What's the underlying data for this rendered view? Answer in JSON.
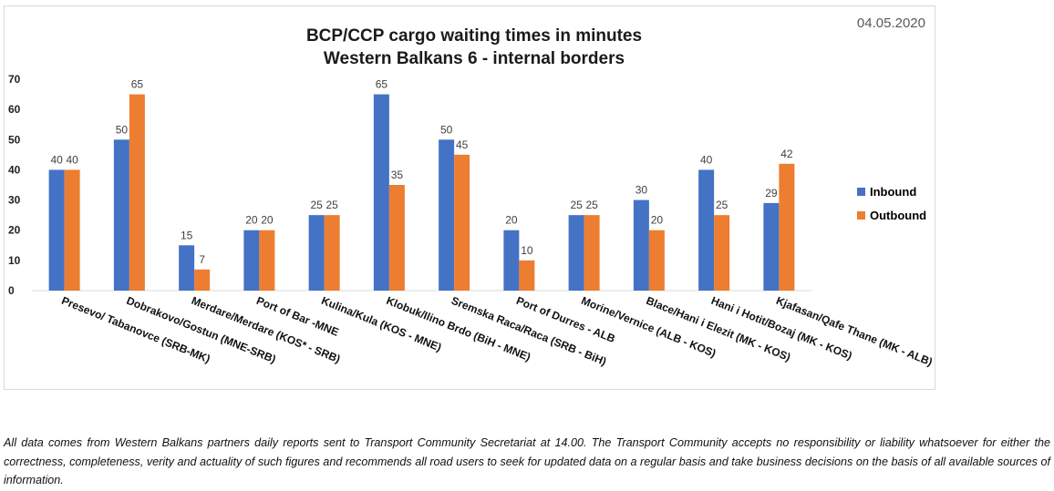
{
  "title_line1": "BCP/CCP cargo waiting times in minutes",
  "title_line2": "Western Balkans 6 - internal borders",
  "date": "04.05.2020",
  "disclaimer": "All data comes from Western Balkans partners daily reports sent to Transport Community Secretariat at 14.00. The Transport Community accepts no responsibility or liability whatsoever for either the correctness, completeness, verity and actuality of such figures and recommends all road users to seek for updated data on a regular basis and take business decisions on the basis of all available sources of information.",
  "chart_data": {
    "type": "bar",
    "title": "BCP/CCP cargo waiting times in minutes Western Balkans 6 - internal borders",
    "categories": [
      "Presevo/ Tabanovce (SRB-MK)",
      "Dobrakovo/Gostun (MNE-SRB)",
      "Merdare/Merdare (KOS* - SRB)",
      "Port of Bar -MNE",
      "Kulina/Kula (KOS - MNE)",
      "Klobuk/Ilino Brdo (BiH - MNE)",
      "Sremska Raca/Raca (SRB - BiH)",
      "Port of Durres - ALB",
      "Morine/Vernice (ALB - KOS)",
      "Blace/Hani i Elezit (MK - KOS)",
      "Hani i Hotit/Bozaj (MK - KOS)",
      "Kjafasan/Qafe Thane (MK - ALB)"
    ],
    "series": [
      {
        "name": "Inbound",
        "color": "#4472C4",
        "values": [
          40,
          50,
          15,
          20,
          25,
          65,
          50,
          20,
          25,
          30,
          40,
          29
        ]
      },
      {
        "name": "Outbound",
        "color": "#ED7D31",
        "values": [
          40,
          65,
          7,
          20,
          25,
          35,
          45,
          10,
          25,
          20,
          25,
          42
        ]
      }
    ],
    "yticks": [
      "0",
      "10",
      "20",
      "30",
      "40",
      "50",
      "60",
      "70"
    ],
    "ylim": [
      0,
      70
    ],
    "grid": false,
    "legend_position": "right"
  }
}
